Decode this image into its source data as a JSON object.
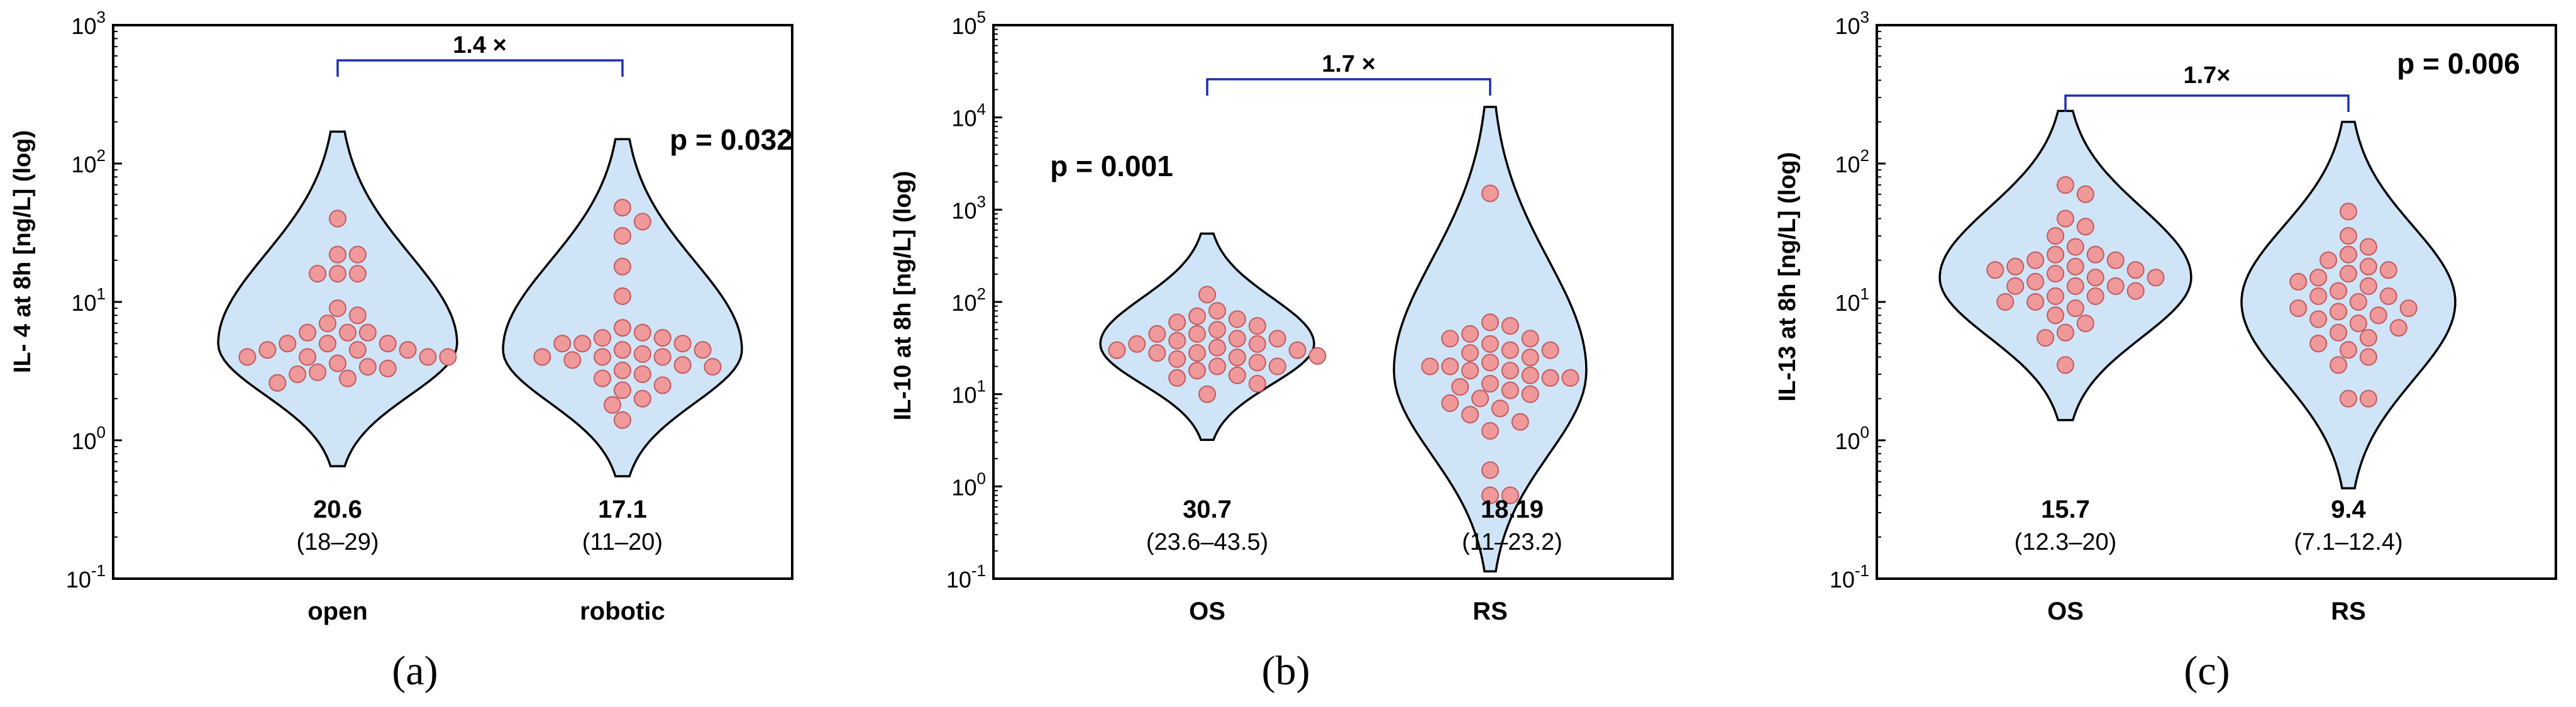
{
  "colors": {
    "violin_fill": "#cfe4f7",
    "point_fill": "#f0999b",
    "point_stroke": "#c25a5e",
    "bracket": "#1f2fb0"
  },
  "chart_data": [
    {
      "type": "violin",
      "panel_label": "(a)",
      "ylabel": "IL- 4 at 8h [ng/L] (log)",
      "yscale": "log",
      "ylim": [
        0.1,
        1000
      ],
      "yticks": [
        {
          "value": 0.1,
          "base": "10",
          "exp": "-1"
        },
        {
          "value": 1,
          "base": "10",
          "exp": "0"
        },
        {
          "value": 10,
          "base": "10",
          "exp": "1"
        },
        {
          "value": 100,
          "base": "10",
          "exp": "2"
        },
        {
          "value": 1000,
          "base": "10",
          "exp": "3"
        }
      ],
      "categories": [
        "open",
        "robotic"
      ],
      "groups": [
        {
          "name": "open",
          "median_label": "20.6",
          "iqr_label": "(18–29)",
          "violin": {
            "min": 0.65,
            "max": 170,
            "mode": 5.0,
            "width_scale": 1.0
          },
          "points": [
            40,
            22,
            22,
            16,
            16,
            16,
            9,
            8,
            7,
            6,
            6,
            6,
            5,
            5,
            5,
            4.5,
            4.5,
            4.5,
            4,
            4,
            4,
            4,
            3.6,
            3.4,
            3.3,
            3.1,
            3,
            2.8,
            2.6
          ]
        },
        {
          "name": "robotic",
          "median_label": "17.1",
          "iqr_label": "(11–20)",
          "violin": {
            "min": 0.55,
            "max": 150,
            "mode": 4.5,
            "width_scale": 1.0
          },
          "points": [
            48,
            38,
            30,
            18,
            11,
            6.5,
            6,
            5.5,
            5.5,
            5,
            5,
            5,
            4.5,
            4.5,
            4.2,
            4,
            4,
            4,
            3.8,
            3.5,
            3.4,
            3.2,
            3,
            2.8,
            2.5,
            2.3,
            2,
            1.8,
            1.4
          ]
        }
      ],
      "fold_label": "1.4 ×",
      "p_value": "p = 0.032"
    },
    {
      "type": "violin",
      "panel_label": "(b)",
      "ylabel": "IL-10 at 8h [ng/L] (log)",
      "yscale": "log",
      "ylim": [
        0.1,
        100000
      ],
      "yticks": [
        {
          "value": 0.1,
          "base": "10",
          "exp": "-1"
        },
        {
          "value": 1,
          "base": "10",
          "exp": "0"
        },
        {
          "value": 10,
          "base": "10",
          "exp": "1"
        },
        {
          "value": 100,
          "base": "10",
          "exp": "2"
        },
        {
          "value": 1000,
          "base": "10",
          "exp": "3"
        },
        {
          "value": 10000,
          "base": "10",
          "exp": "4"
        },
        {
          "value": 100000,
          "base": "10",
          "exp": "5"
        }
      ],
      "categories": [
        "OS",
        "RS"
      ],
      "groups": [
        {
          "name": "OS",
          "median_label": "30.7",
          "iqr_label": "(23.6–43.5)",
          "violin": {
            "min": 3.2,
            "max": 550,
            "mode": 35,
            "width_scale": 1.0
          },
          "points": [
            120,
            80,
            70,
            65,
            60,
            55,
            50,
            45,
            45,
            40,
            40,
            38,
            35,
            35,
            32,
            30,
            30,
            28,
            28,
            26,
            25,
            24,
            22,
            20,
            20,
            18,
            16,
            15,
            13,
            10
          ]
        },
        {
          "name": "RS",
          "median_label": "18.19",
          "iqr_label": "(11–23.2)",
          "violin": {
            "min": 0.12,
            "max": 13000,
            "mode": 18,
            "width_scale": 0.9
          },
          "points": [
            1500,
            60,
            55,
            45,
            40,
            40,
            35,
            30,
            30,
            28,
            25,
            22,
            20,
            20,
            18,
            18,
            16,
            15,
            15,
            13,
            12,
            11,
            10,
            9,
            8,
            7,
            6,
            5,
            4,
            1.5,
            0.8,
            0.8
          ]
        }
      ],
      "fold_label": "1.7 ×",
      "p_value": "p = 0.001"
    },
    {
      "type": "violin",
      "panel_label": "(c)",
      "ylabel": "IL-13 at 8h [ng/L] (log)",
      "yscale": "log",
      "ylim": [
        0.1,
        1000
      ],
      "yticks": [
        {
          "value": 0.1,
          "base": "10",
          "exp": "-1"
        },
        {
          "value": 1,
          "base": "10",
          "exp": "0"
        },
        {
          "value": 10,
          "base": "10",
          "exp": "1"
        },
        {
          "value": 100,
          "base": "10",
          "exp": "2"
        },
        {
          "value": 1000,
          "base": "10",
          "exp": "3"
        }
      ],
      "categories": [
        "OS",
        "RS"
      ],
      "groups": [
        {
          "name": "OS",
          "median_label": "15.7",
          "iqr_label": "(12.3–20)",
          "violin": {
            "min": 1.4,
            "max": 240,
            "mode": 15,
            "width_scale": 1.0
          },
          "points": [
            70,
            60,
            40,
            35,
            30,
            25,
            22,
            22,
            20,
            20,
            18,
            18,
            17,
            17,
            16,
            15,
            15,
            14,
            13,
            13,
            13,
            12,
            11,
            11,
            10,
            10,
            9,
            8,
            7,
            6,
            5.5,
            3.5
          ]
        },
        {
          "name": "RS",
          "median_label": "9.4",
          "iqr_label": "(7.1–12.4)",
          "violin": {
            "min": 0.45,
            "max": 200,
            "mode": 10,
            "width_scale": 0.85
          },
          "points": [
            45,
            30,
            25,
            22,
            20,
            18,
            17,
            16,
            15,
            14,
            13,
            12,
            11,
            11,
            10,
            9,
            9,
            8.5,
            8,
            7.5,
            7,
            6.5,
            6,
            5.5,
            5,
            4.5,
            4,
            3.5,
            2,
            2
          ]
        }
      ],
      "fold_label": "1.7×",
      "p_value": "p = 0.006"
    }
  ]
}
